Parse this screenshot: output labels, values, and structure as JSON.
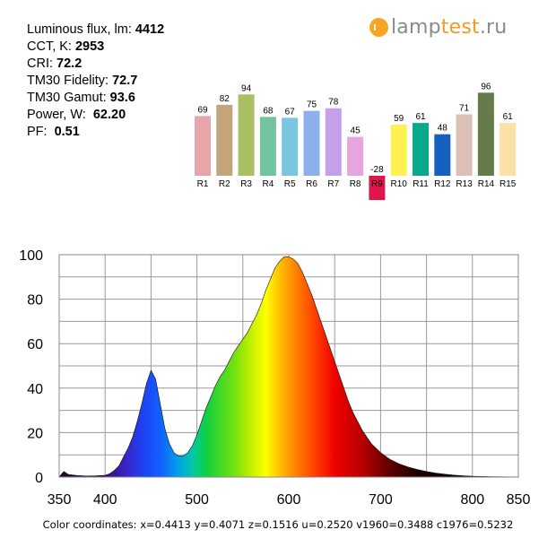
{
  "brand": {
    "name_part1": "lamp",
    "name_part2": "test",
    "name_part3": ".ru",
    "accent": "#f6a623"
  },
  "params": [
    {
      "label": "Luminous flux, lm:",
      "value": "4412"
    },
    {
      "label": "CCT, K:",
      "value": "2953"
    },
    {
      "label": "CRI:",
      "value": "72.2"
    },
    {
      "label": "TM30 Fidelity:",
      "value": "72.7"
    },
    {
      "label": "TM30 Gamut:",
      "value": "93.6"
    },
    {
      "label": "Power, W:",
      "value": "62.20"
    },
    {
      "label": "PF:",
      "value": "0.51"
    }
  ],
  "color_coordinates": "Color coordinates: x=0.4413 y=0.4071 z=0.1516 u=0.2520 v1960=0.3488 c1976=0.5232",
  "chart_data": [
    {
      "type": "bar",
      "categories": [
        "R1",
        "R2",
        "R3",
        "R4",
        "R5",
        "R6",
        "R7",
        "R8",
        "R9",
        "R10",
        "R11",
        "R12",
        "R13",
        "R14",
        "R15"
      ],
      "values": [
        69,
        82,
        94,
        68,
        67,
        75,
        78,
        45,
        -28,
        59,
        61,
        48,
        71,
        96,
        61
      ],
      "colors": [
        "#e7a5aa",
        "#c4a57b",
        "#a8bf63",
        "#73c39c",
        "#7cc5e1",
        "#8db0ec",
        "#c5a0e9",
        "#e5a6df",
        "#e0154b",
        "#fdf251",
        "#0aa98a",
        "#1760bd",
        "#dcbfb5",
        "#667b4b",
        "#fde0a6"
      ],
      "ylim": [
        -28,
        96
      ]
    },
    {
      "type": "area",
      "x_ticks": [
        350,
        400,
        500,
        600,
        700,
        800,
        850
      ],
      "y_ticks": [
        0,
        20,
        40,
        60,
        80,
        100
      ],
      "xlim": [
        350,
        850
      ],
      "ylim": [
        0,
        100
      ],
      "grid": true,
      "x": [
        350,
        355,
        360,
        370,
        380,
        390,
        400,
        405,
        410,
        415,
        420,
        425,
        430,
        435,
        440,
        445,
        450,
        455,
        460,
        465,
        470,
        475,
        480,
        485,
        490,
        495,
        500,
        505,
        510,
        515,
        520,
        525,
        530,
        535,
        540,
        545,
        550,
        555,
        560,
        565,
        570,
        575,
        580,
        585,
        590,
        595,
        600,
        605,
        610,
        615,
        620,
        625,
        630,
        635,
        640,
        645,
        650,
        655,
        660,
        665,
        670,
        675,
        680,
        690,
        700,
        710,
        720,
        730,
        740,
        750,
        760,
        770,
        780,
        790,
        800,
        820,
        850
      ],
      "y": [
        0,
        2.5,
        1.2,
        0.7,
        0.5,
        0.6,
        0.8,
        1.5,
        3,
        5,
        9,
        13,
        18,
        25,
        33,
        42,
        48,
        44,
        33,
        22,
        15,
        11,
        9.5,
        9.5,
        11,
        14,
        19,
        25,
        31,
        36,
        41,
        45,
        48,
        52,
        56,
        59,
        62,
        65,
        69,
        73,
        78,
        84,
        89,
        94,
        97,
        99,
        99,
        98,
        96,
        92,
        87,
        82,
        76,
        70,
        64,
        58,
        52,
        46,
        40,
        34,
        29,
        25,
        21,
        15,
        11,
        8,
        6,
        4.5,
        3.4,
        2.5,
        1.8,
        1.3,
        0.9,
        0.6,
        0.4,
        0.2,
        0.1
      ]
    }
  ]
}
